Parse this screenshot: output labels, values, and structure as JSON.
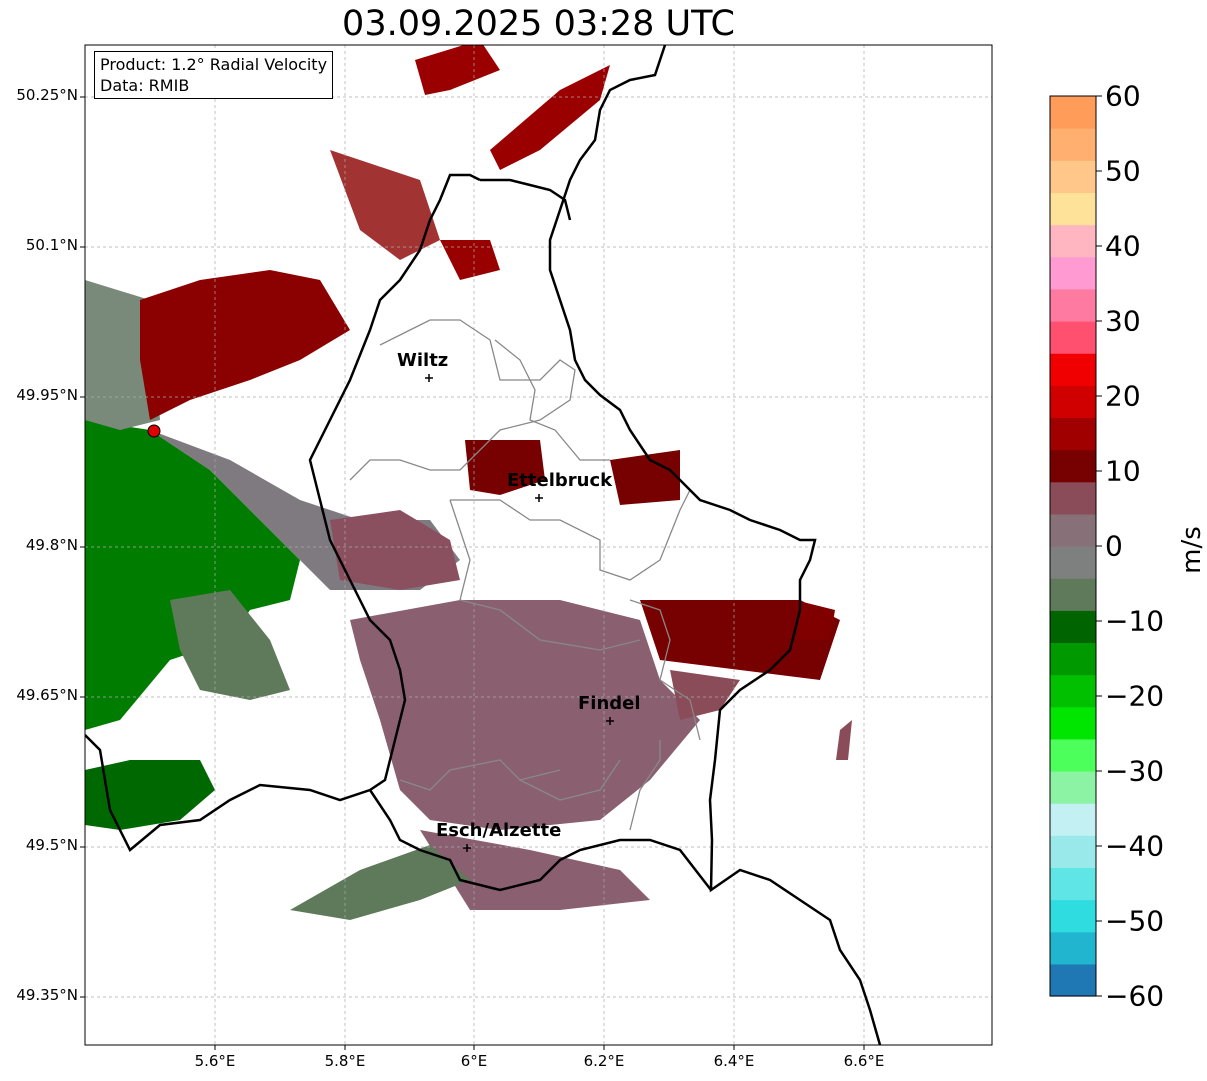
{
  "title": "03.09.2025 03:28 UTC",
  "info_box": {
    "product": "Product: 1.2° Radial Velocity",
    "data": "Data: RMIB"
  },
  "lat_ticks": [
    "50.25°N",
    "50.1°N",
    "49.95°N",
    "49.8°N",
    "49.65°N",
    "49.5°N",
    "49.35°N"
  ],
  "lon_ticks": [
    "5.6°E",
    "5.8°E",
    "6°E",
    "6.2°E",
    "6.4°E",
    "6.6°E"
  ],
  "colorbar": {
    "unit": "m/s",
    "ticks": [
      "60",
      "50",
      "40",
      "30",
      "20",
      "10",
      "0",
      "−10",
      "−20",
      "−30",
      "−40",
      "−50",
      "−60"
    ],
    "colors": [
      "#1f77b4",
      "#22b5d0",
      "#2fdde0",
      "#5fe5e5",
      "#9ae9ea",
      "#c2f0f3",
      "#8cf2a4",
      "#4dff5a",
      "#00e600",
      "#00c000",
      "#009900",
      "#006400",
      "#5e7a5a",
      "#7e8080",
      "#877078",
      "#8a4c58",
      "#770000",
      "#a00000",
      "#d00000",
      "#f00000",
      "#ff5070",
      "#ff7aa0",
      "#ff9ad2",
      "#ffb6c1",
      "#ffe29a",
      "#ffc88a",
      "#ffb070",
      "#ff9c5a"
    ]
  },
  "cities": [
    {
      "name": "Wiltz"
    },
    {
      "name": "Ettelbruck"
    },
    {
      "name": "Findel"
    },
    {
      "name": "Esch/Alzette"
    }
  ]
}
